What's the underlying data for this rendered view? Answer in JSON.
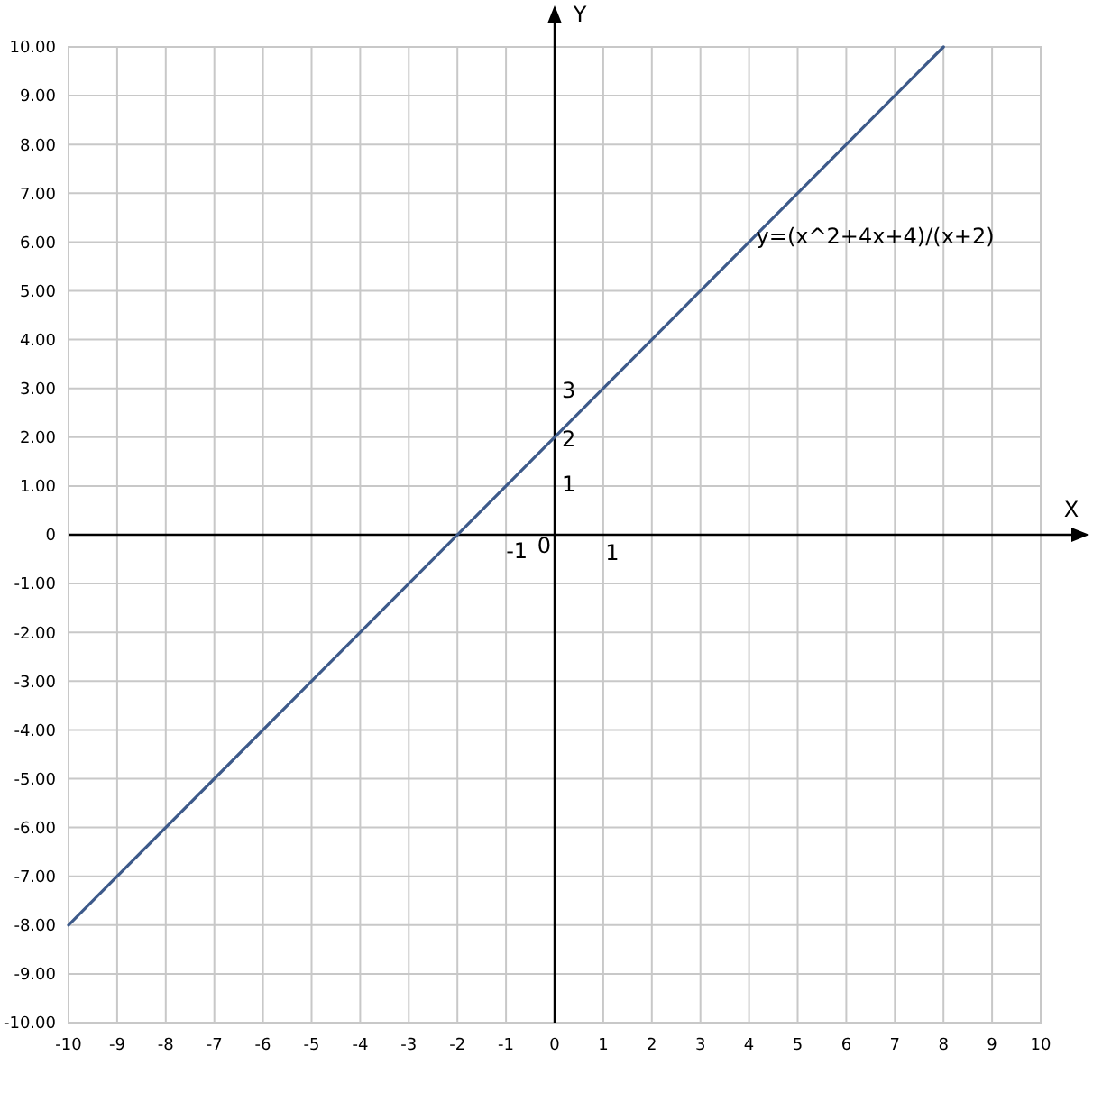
{
  "chart_data": {
    "type": "line",
    "xlabel": "X",
    "ylabel": "Y",
    "xlim": [
      -10,
      10
    ],
    "ylim": [
      -10,
      10
    ],
    "xticks": [
      -10,
      -9,
      -8,
      -7,
      -6,
      -5,
      -4,
      -3,
      -2,
      -1,
      0,
      1,
      2,
      3,
      4,
      5,
      6,
      7,
      8,
      9,
      10
    ],
    "yticks": [
      {
        "value": 10,
        "label": "10.00"
      },
      {
        "value": 9,
        "label": "9.00"
      },
      {
        "value": 8,
        "label": "8.00"
      },
      {
        "value": 7,
        "label": "7.00"
      },
      {
        "value": 6,
        "label": "6.00"
      },
      {
        "value": 5,
        "label": "5.00"
      },
      {
        "value": 4,
        "label": "4.00"
      },
      {
        "value": 3,
        "label": "3.00"
      },
      {
        "value": 2,
        "label": "2.00"
      },
      {
        "value": 1,
        "label": "1.00"
      },
      {
        "value": 0,
        "label": "0"
      },
      {
        "value": -1,
        "label": "-1.00"
      },
      {
        "value": -2,
        "label": "-2.00"
      },
      {
        "value": -3,
        "label": "-3.00"
      },
      {
        "value": -4,
        "label": "-4.00"
      },
      {
        "value": -5,
        "label": "-5.00"
      },
      {
        "value": -6,
        "label": "-6.00"
      },
      {
        "value": -7,
        "label": "-7.00"
      },
      {
        "value": -8,
        "label": "-8.00"
      },
      {
        "value": -9,
        "label": "-9.00"
      },
      {
        "value": -10,
        "label": "-10.00"
      }
    ],
    "grid": true,
    "series": [
      {
        "color": "#3d5a8a",
        "x": [
          -10,
          8
        ],
        "values": [
          -8,
          10
        ]
      }
    ],
    "annotations": [
      {
        "text": "y=(x^2+4x+4)/(x+2)",
        "x": 4,
        "y": 6
      },
      "3",
      "2",
      "1",
      "-1",
      "0",
      "1"
    ]
  }
}
